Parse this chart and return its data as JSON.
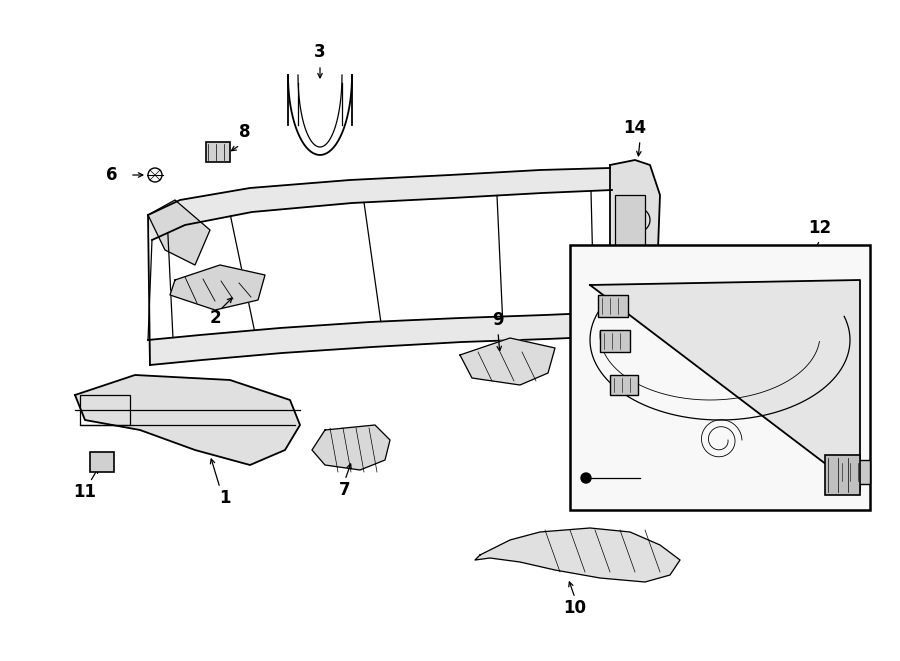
{
  "bg_color": "#ffffff",
  "line_color": "#000000",
  "fig_width": 9.0,
  "fig_height": 6.61,
  "lw_main": 1.3,
  "lw_med": 0.9,
  "lw_thin": 0.6,
  "label_fontsize": 12
}
